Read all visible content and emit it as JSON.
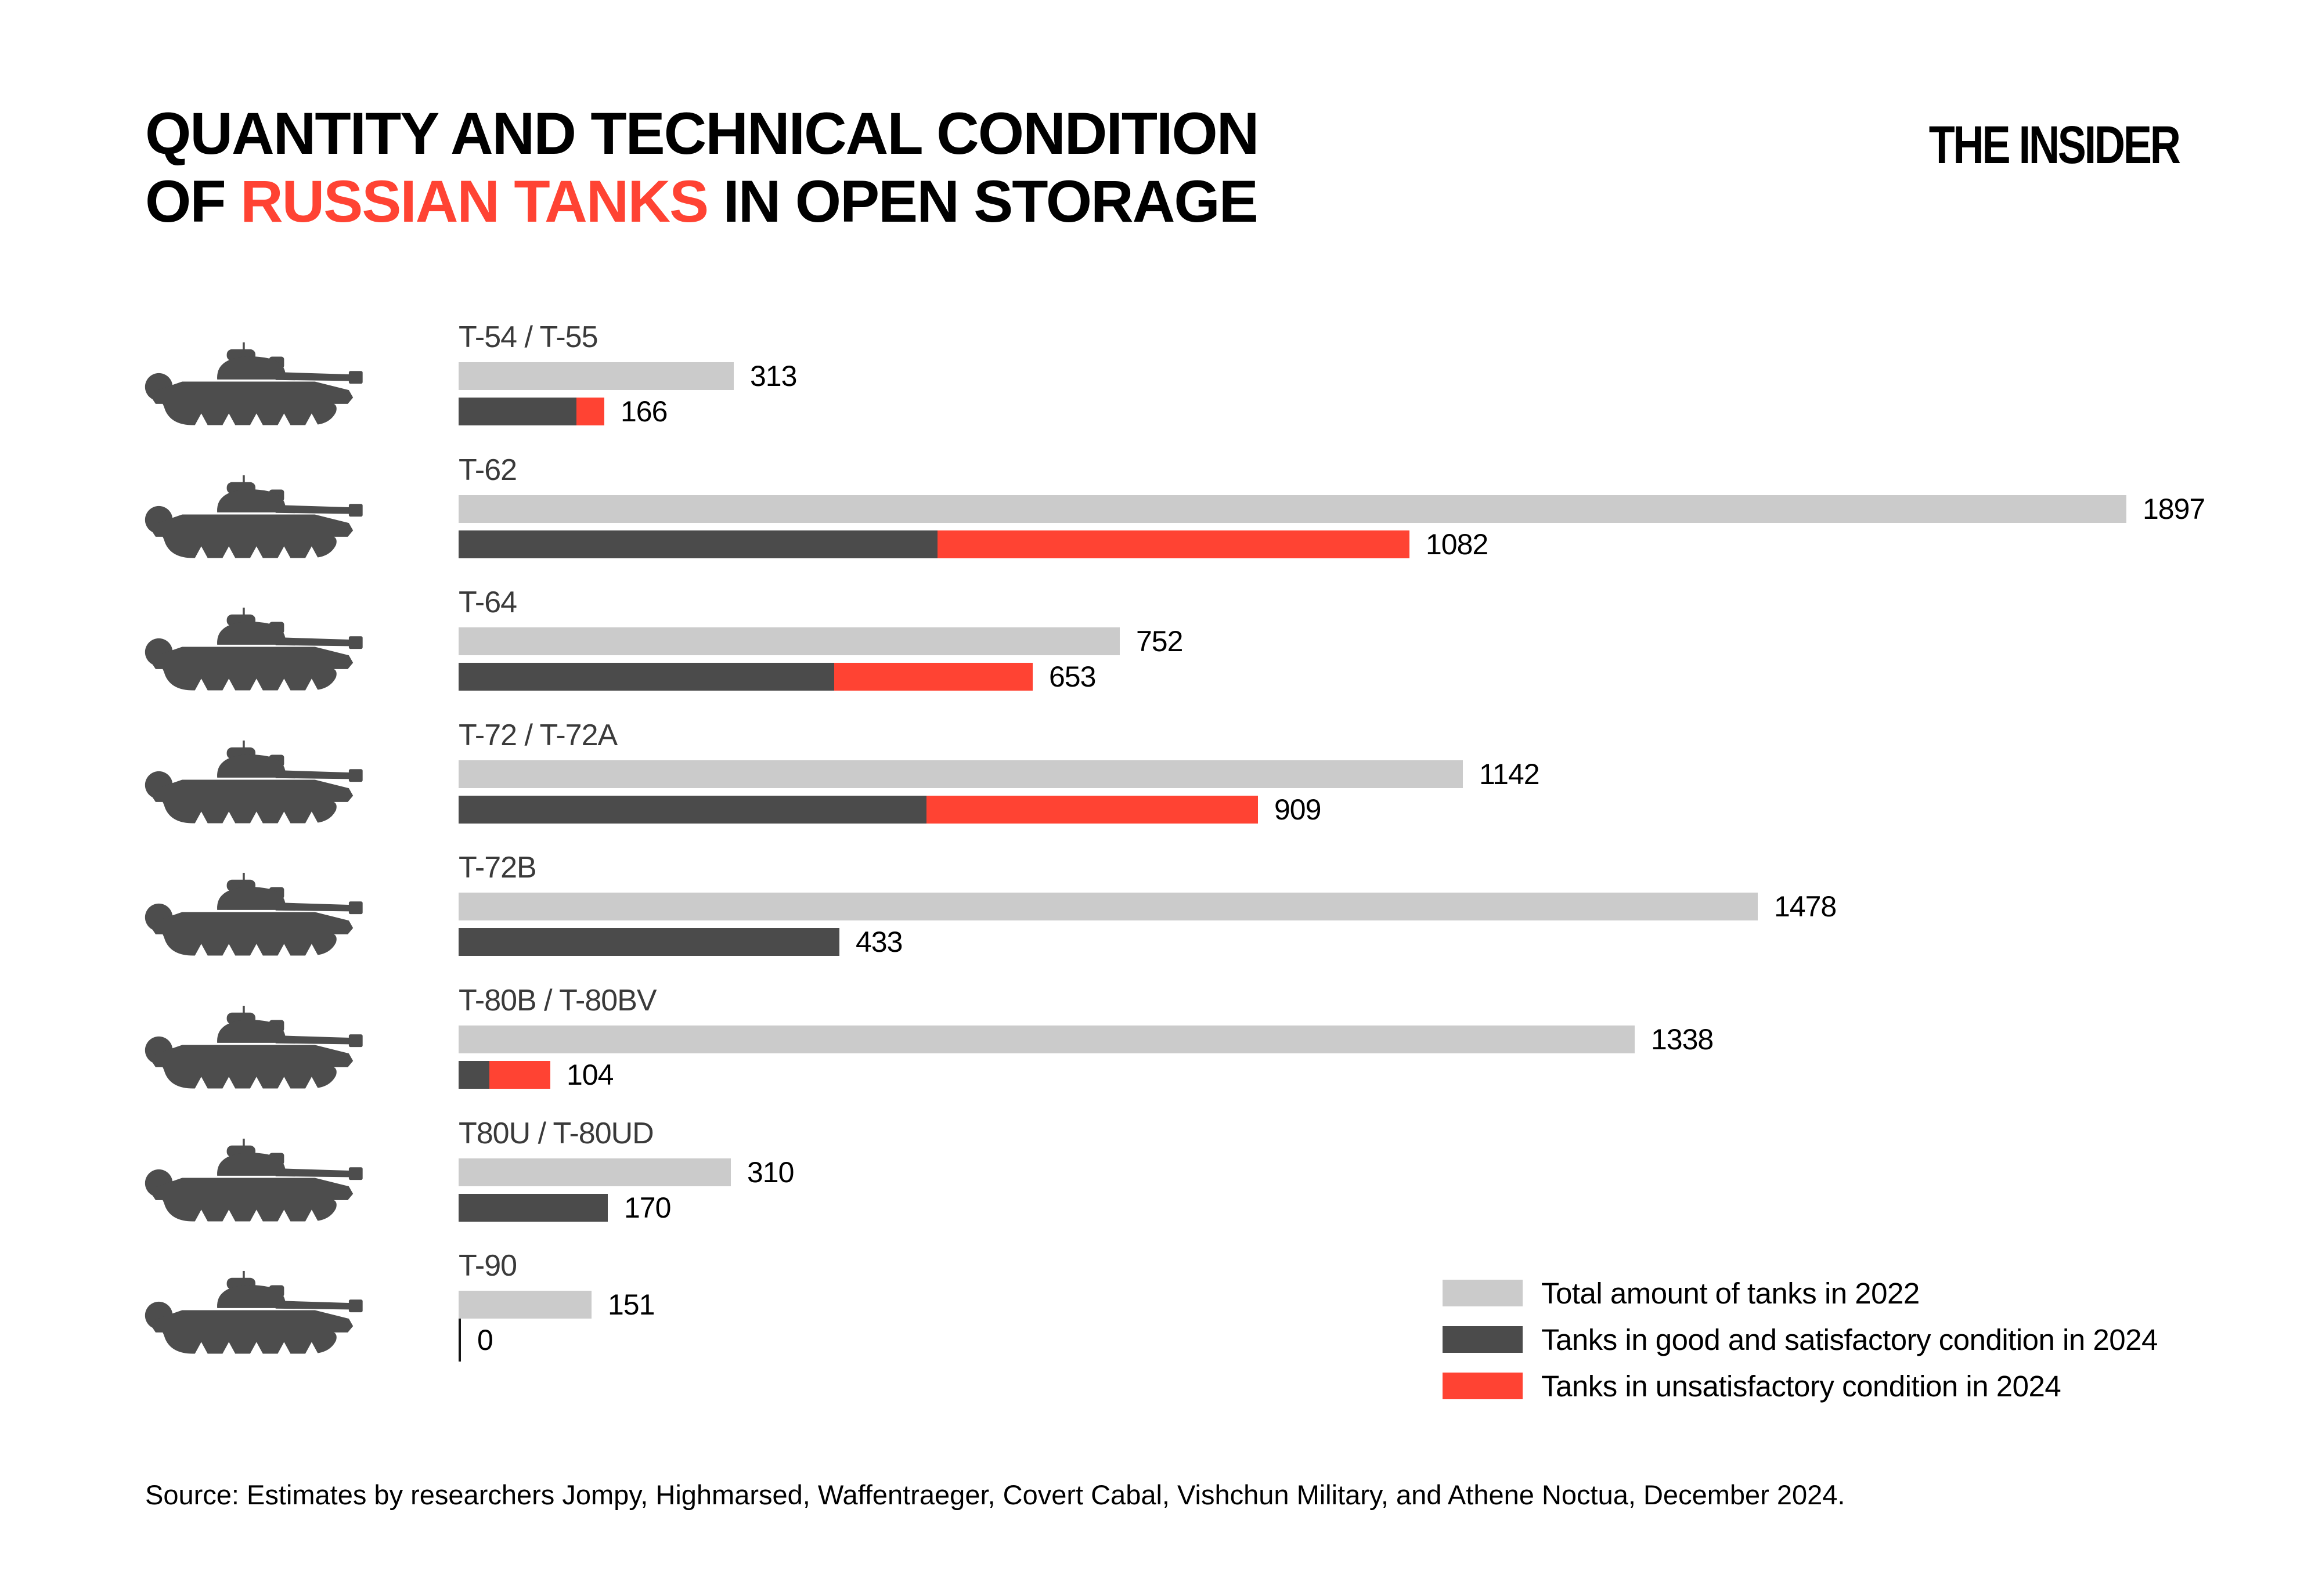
{
  "title": {
    "line1": "QUANTITY AND TECHNICAL CONDITION",
    "line2_prefix": "OF ",
    "line2_accent": "RUSSIAN TANKS",
    "line2_suffix": " IN OPEN STORAGE"
  },
  "logo": "THE INSIDER",
  "colors": {
    "total_2022": "#cbcbcb",
    "good_2024": "#4b4b4b",
    "unsatisfactory_2024": "#ff4333",
    "accent_red": "#ff4333",
    "tank_silhouette": "#4d4d4d"
  },
  "chart_data": {
    "type": "bar",
    "orientation": "horizontal",
    "grid": false,
    "x_max": 1897,
    "legend_position": "bottom-right",
    "categories": [
      "T-54 / T-55",
      "T-62",
      "T-64",
      "T-72 / T-72A",
      "T-72B",
      "T-80B / T-80BV",
      "T80U / T-80UD",
      "T-90"
    ],
    "series": [
      {
        "name": "Total amount of tanks in 2022",
        "color": "#cbcbcb",
        "values": [
          313,
          1897,
          752,
          1142,
          1478,
          1338,
          310,
          151
        ]
      },
      {
        "name": "Tanks in good and satisfactory condition in 2024",
        "color": "#4b4b4b",
        "values": [
          134,
          545,
          427,
          532,
          433,
          35,
          170,
          0
        ]
      },
      {
        "name": "Tanks in unsatisfactory condition in 2024",
        "color": "#ff4333",
        "values": [
          32,
          537,
          226,
          377,
          0,
          69,
          0,
          0
        ]
      }
    ],
    "value_labels_2022": [
      313,
      1897,
      752,
      1142,
      1478,
      1338,
      310,
      151
    ],
    "value_labels_2024": [
      166,
      1082,
      653,
      909,
      433,
      104,
      170,
      0
    ]
  },
  "source": "Source: Estimates by researchers Jompy, Highmarsed, Waffentraeger, Covert Cabal, Vishchun Military, and Athene Noctua, December 2024."
}
